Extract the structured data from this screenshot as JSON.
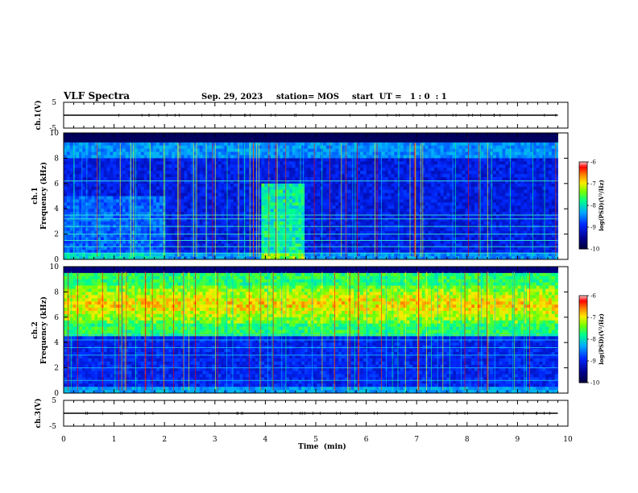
{
  "header": {
    "title": "VLF Spectra",
    "date": "Sep. 29, 2023",
    "station": "station= MOS",
    "start": "start  UT =   1 : 0  : 1"
  },
  "colors": {
    "spectrogram_scale": [
      "#000080",
      "#0000ff",
      "#00c0ff",
      "#00ff80",
      "#ffff00",
      "#ff8000",
      "#ff0000",
      "#ffffff"
    ],
    "waveform": "#000000"
  },
  "chart_data": [
    {
      "type": "line",
      "name": "ch1-waveform",
      "ylabel": "ch.1(V)",
      "ylim": [
        -5,
        5
      ],
      "yticks": [
        "5",
        "-5"
      ],
      "xlim": [
        0,
        10
      ],
      "x": [
        0,
        9.8
      ],
      "values": [
        0,
        0
      ]
    },
    {
      "type": "heatmap",
      "name": "ch1-spectrogram",
      "ylabel": "ch.1\nFrequency (kHz)",
      "ylabel_line1": "ch.1",
      "ylabel_line2": "Frequency (kHz)",
      "ylim": [
        0,
        10
      ],
      "yticks": [
        "0",
        "2",
        "4",
        "6",
        "8",
        "10"
      ],
      "xlim": [
        0,
        10
      ],
      "data_end_min": 9.8,
      "colorbar": {
        "label": "log(PSD)(V²/Hz)",
        "range": [
          -10,
          -6
        ],
        "ticks": [
          "-6",
          "-7",
          "-8",
          "-9",
          "-10"
        ]
      },
      "features": {
        "lines_khz": [
          0.5,
          1.0,
          1.5,
          2.0,
          2.6,
          3.2,
          3.5,
          6.2
        ],
        "broadband_band_khz": [
          0.5,
          9.5
        ],
        "noise_burst_min": [
          3.9,
          4.8
        ],
        "noise_burst_khz": [
          0,
          6
        ]
      }
    },
    {
      "type": "heatmap",
      "name": "ch2-spectrogram",
      "ylabel": "ch.2\nFrequency (kHz)",
      "ylabel_line1": "ch.2",
      "ylabel_line2": "Frequency (kHz)",
      "ylim": [
        0,
        10
      ],
      "yticks": [
        "0",
        "2",
        "4",
        "6",
        "8",
        "10"
      ],
      "xlim": [
        0,
        10
      ],
      "data_end_min": 9.8,
      "colorbar": {
        "label": "log(PSD)(V²/Hz)",
        "range": [
          -10,
          -6
        ],
        "ticks": [
          "-6",
          "-7",
          "-8",
          "-9",
          "-10"
        ]
      },
      "features": {
        "strong_band_khz": [
          5.5,
          8.5
        ],
        "lines_khz": [
          1.0,
          2.0,
          3.0,
          3.6,
          4.2,
          4.6
        ],
        "low_noise_khz": [
          0,
          4
        ]
      }
    },
    {
      "type": "line",
      "name": "ch3-waveform",
      "ylabel": "ch.3(V)",
      "ylim": [
        -5,
        5
      ],
      "yticks": [
        "5",
        "-5"
      ],
      "xlim": [
        0,
        10
      ],
      "x": [
        0,
        9.8
      ],
      "values": [
        0,
        0
      ]
    }
  ],
  "xaxis": {
    "label": "Time  (min)",
    "ticks": [
      "0",
      "1",
      "2",
      "3",
      "4",
      "5",
      "6",
      "7",
      "8",
      "9",
      "10"
    ]
  }
}
